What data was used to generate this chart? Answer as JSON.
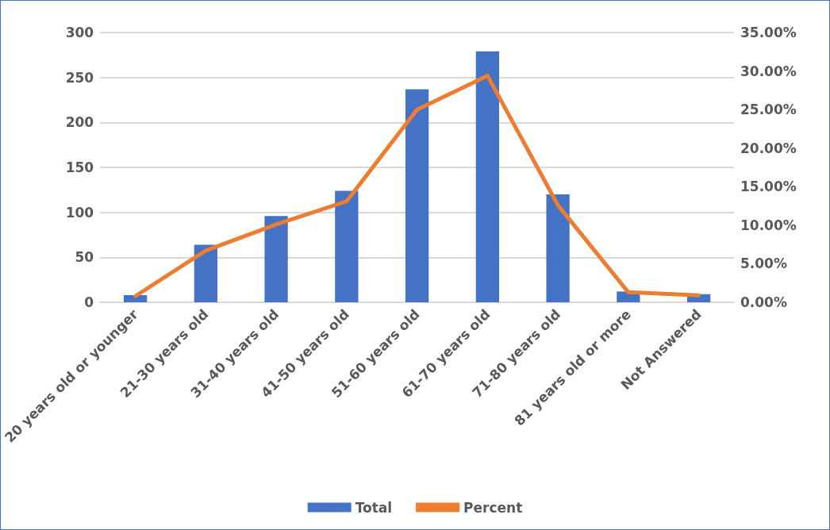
{
  "chart_data": {
    "type": "bar",
    "categories": [
      "20 years old or younger",
      "21-30 years old",
      "31-40 years old",
      "41-50 years old",
      "51-60 years old",
      "61-70 years old",
      "71-80 years old",
      "81 years old or more",
      "Not Answered"
    ],
    "series": [
      {
        "name": "Total",
        "color": "#4472c4",
        "values": [
          8,
          64,
          96,
          124,
          237,
          279,
          120,
          12,
          9
        ]
      },
      {
        "name": "Percent",
        "type": "line",
        "axis": "y2",
        "color": "#ed7d31",
        "marker": "none",
        "values": [
          0.8,
          6.7,
          10.1,
          13.1,
          25.0,
          29.4,
          12.6,
          1.3,
          0.9
        ]
      }
    ],
    "ylim": [
      0,
      300
    ],
    "yticks": [
      0,
      50,
      100,
      150,
      200,
      250,
      300
    ],
    "y2lim": [
      0,
      35
    ],
    "y2ticks": [
      {
        "value": 0,
        "label": "0.00%"
      },
      {
        "value": 5,
        "label": "5.00%"
      },
      {
        "value": 10,
        "label": "10.00%"
      },
      {
        "value": 15,
        "label": "15.00%"
      },
      {
        "value": 20,
        "label": "20.00%"
      },
      {
        "value": 25,
        "label": "25.00%"
      },
      {
        "value": 30,
        "label": "30.00%"
      },
      {
        "value": 35,
        "label": "35.00%"
      }
    ],
    "grid": "y",
    "legend": "bottom"
  }
}
